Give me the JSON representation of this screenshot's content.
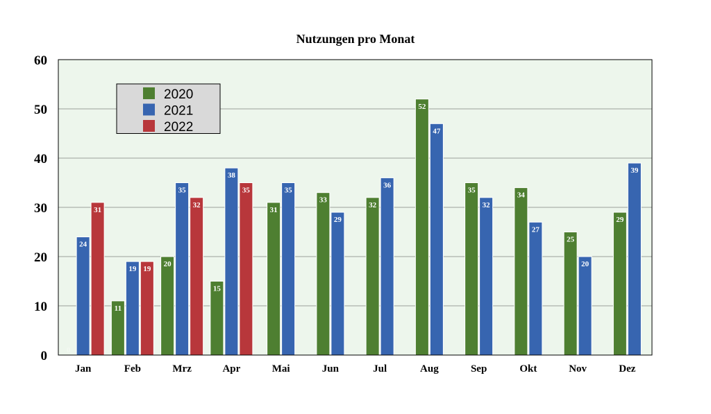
{
  "chart_data": {
    "type": "bar",
    "title": "Nutzungen pro Monat",
    "xlabel": "",
    "ylabel": "",
    "ylim": [
      0,
      60
    ],
    "yticks": [
      0,
      10,
      20,
      30,
      40,
      50,
      60
    ],
    "grid": true,
    "legend_position": "top-left",
    "categories": [
      "Jan",
      "Feb",
      "Mrz",
      "Apr",
      "Mai",
      "Jun",
      "Jul",
      "Aug",
      "Sep",
      "Okt",
      "Nov",
      "Dez"
    ],
    "series": [
      {
        "name": "2020",
        "color": "#4e7f31",
        "values": [
          0,
          11,
          20,
          15,
          31,
          33,
          32,
          52,
          35,
          34,
          25,
          29
        ]
      },
      {
        "name": "2021",
        "color": "#3765b0",
        "values": [
          24,
          19,
          35,
          38,
          35,
          29,
          36,
          47,
          32,
          27,
          20,
          39
        ]
      },
      {
        "name": "2022",
        "color": "#b8373b",
        "values": [
          31,
          19,
          32,
          35,
          null,
          null,
          null,
          null,
          null,
          null,
          null,
          null
        ]
      }
    ],
    "colors": {
      "plot_background": "#edf6ec",
      "grid": "#9aa09a"
    }
  }
}
